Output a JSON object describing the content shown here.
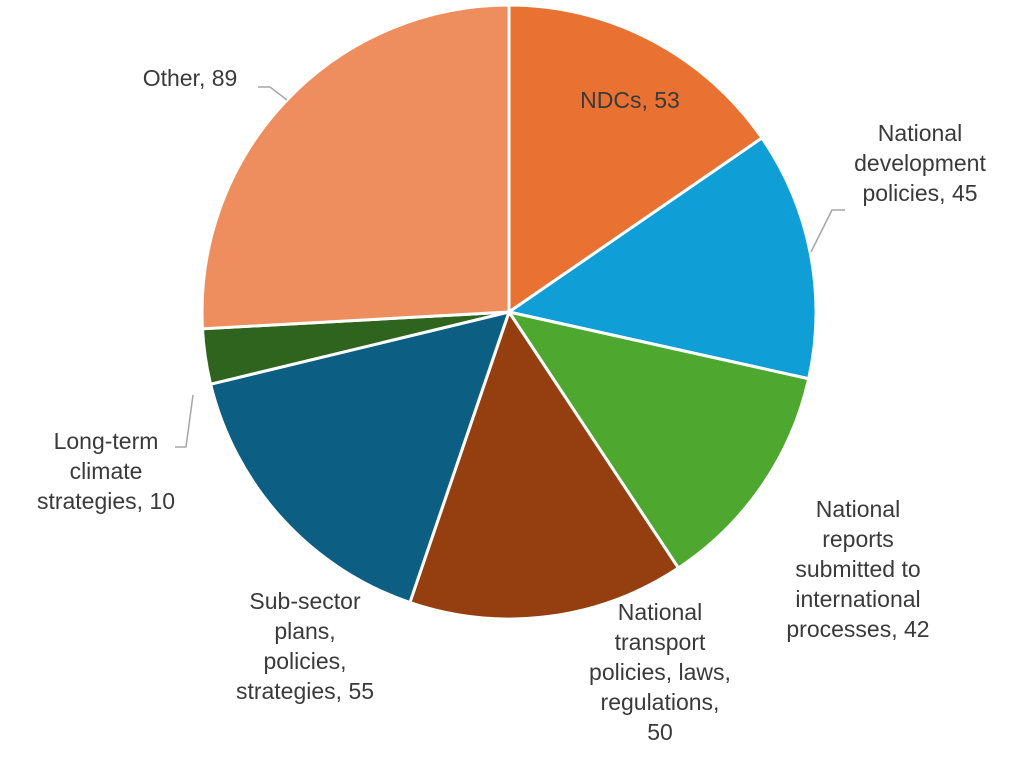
{
  "chart_data": {
    "type": "pie",
    "title": "",
    "slices": [
      {
        "label": "NDCs",
        "value": 53,
        "color": "#E97132",
        "text_lines": [
          "NDCs, 53"
        ]
      },
      {
        "label": "National development policies",
        "value": 45,
        "color": "#0F9ED5",
        "text_lines": [
          "National",
          "development",
          "policies, 45"
        ]
      },
      {
        "label": "National reports submitted to international processes",
        "value": 42,
        "color": "#4EA72E",
        "text_lines": [
          "National",
          "reports",
          "submitted to",
          "international",
          "processes, 42"
        ]
      },
      {
        "label": "National transport policies, laws, regulations",
        "value": 50,
        "color": "#953F10",
        "text_lines": [
          "National",
          "transport",
          "policies, laws,",
          "regulations,",
          "50"
        ]
      },
      {
        "label": "Sub-sector plans, policies, strategies",
        "value": 55,
        "color": "#0C5F82",
        "text_lines": [
          "Sub-sector",
          "plans,",
          "policies,",
          "strategies, 55"
        ]
      },
      {
        "label": "Long-term climate strategies",
        "value": 10,
        "color": "#2E641D",
        "text_lines": [
          "Long-term",
          "climate",
          "strategies, 10"
        ]
      },
      {
        "label": "Other",
        "value": 89,
        "color": "#EE8E5E",
        "text_lines": [
          "Other, 89"
        ]
      }
    ],
    "start_angle": "12 o'clock",
    "direction": "clockwise",
    "legend": "none",
    "data_labels": "category name and value"
  }
}
